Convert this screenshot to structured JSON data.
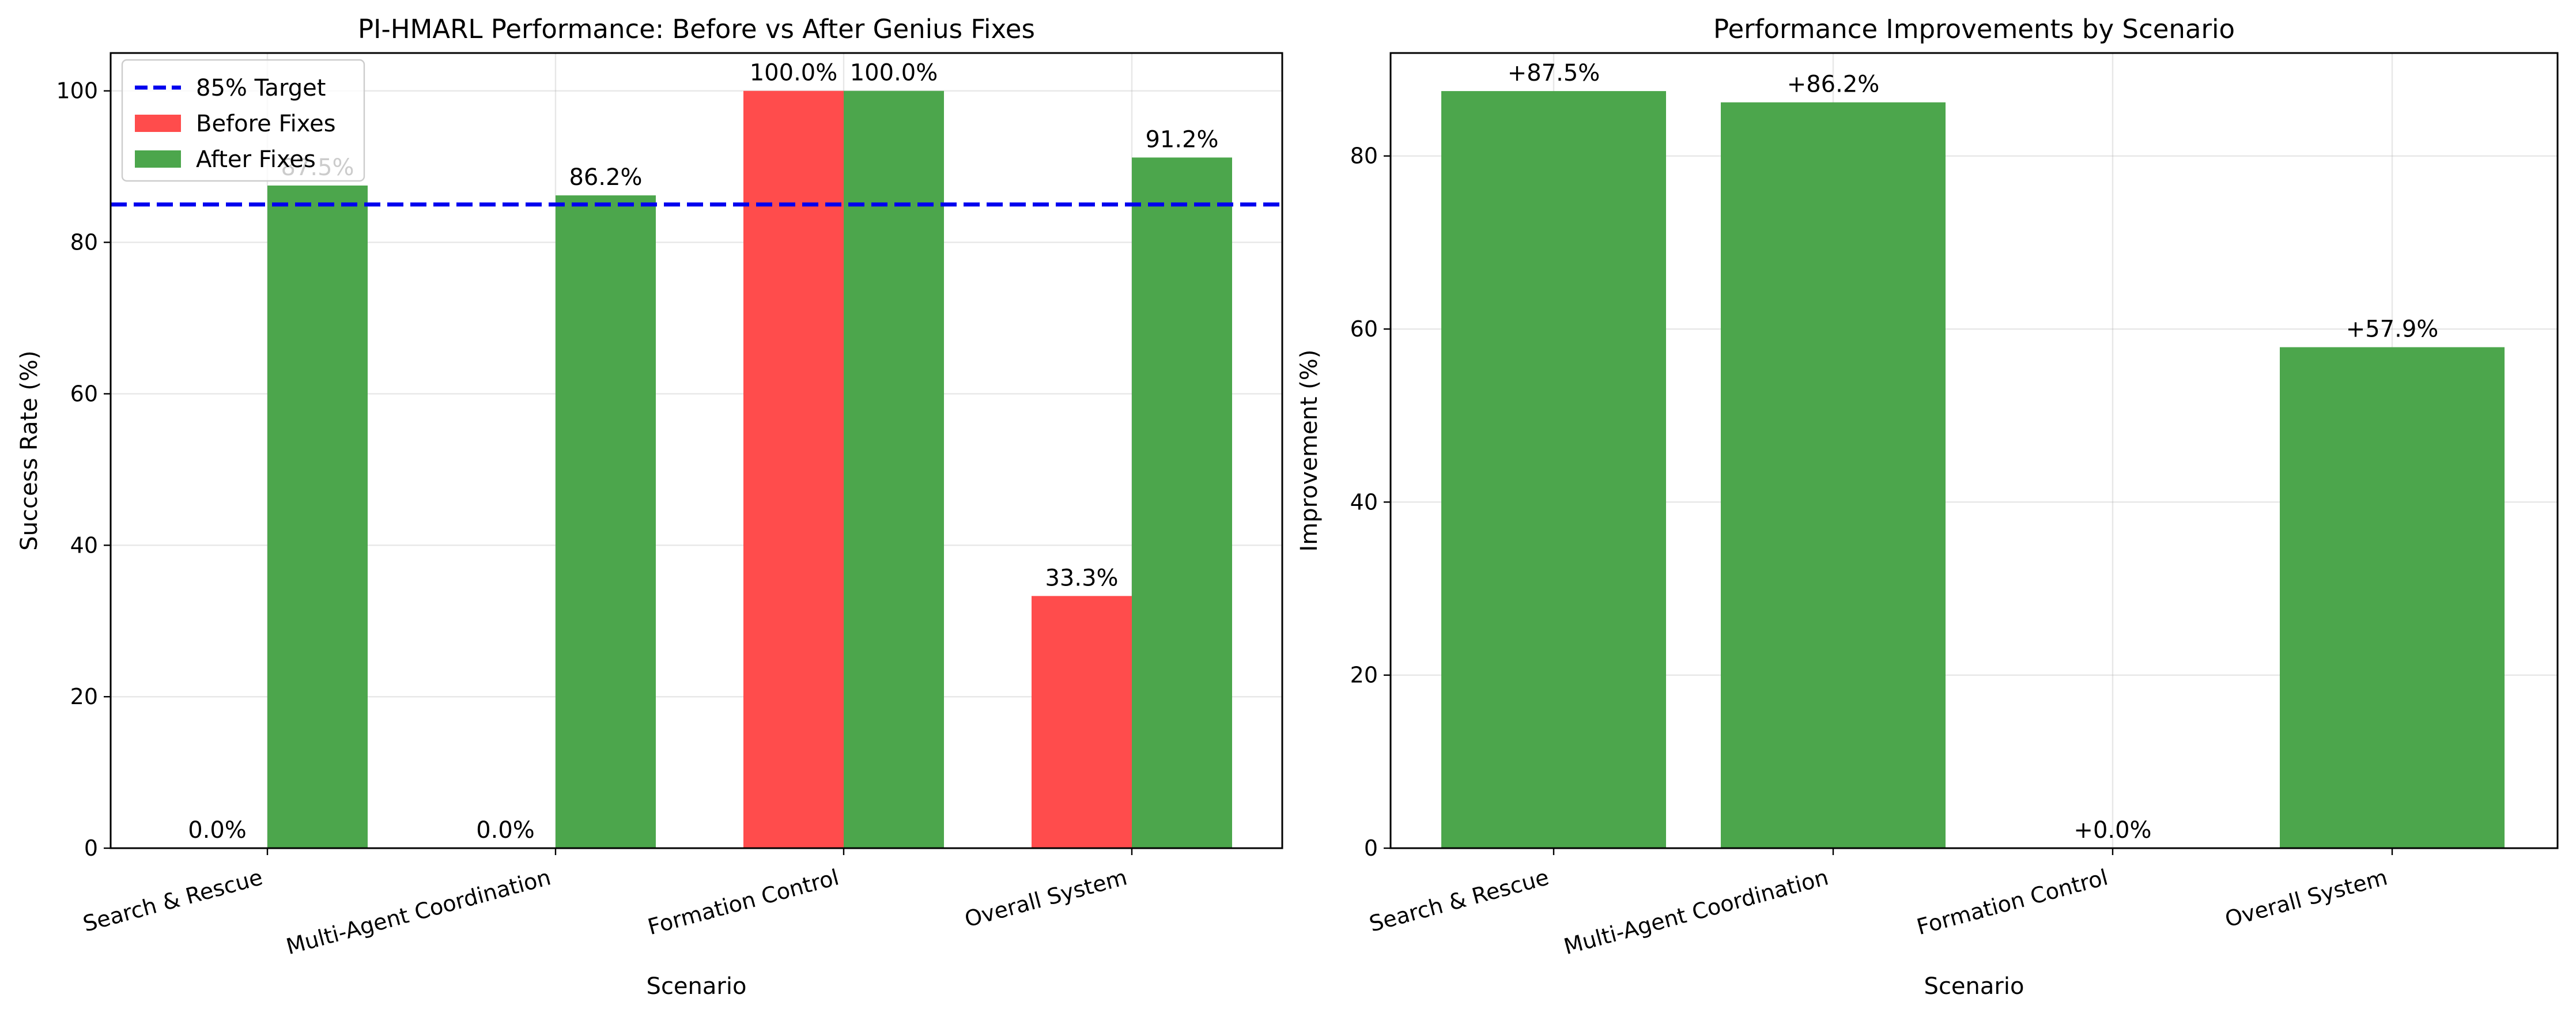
{
  "chart_data": [
    {
      "type": "bar",
      "title": "PI-HMARL Performance: Before vs After Genius Fixes",
      "xlabel": "Scenario",
      "ylabel": "Success Rate (%)",
      "categories": [
        "Search & Rescue",
        "Multi-Agent Coordination",
        "Formation Control",
        "Overall System"
      ],
      "series": [
        {
          "name": "Before Fixes",
          "color": "#ff4c4c",
          "values": [
            0.0,
            0.0,
            100.0,
            33.3
          ],
          "labels": [
            "0.0%",
            "0.0%",
            "100.0%",
            "33.3%"
          ]
        },
        {
          "name": "After Fixes",
          "color": "#4ca64c",
          "values": [
            87.5,
            86.2,
            100.0,
            91.2
          ],
          "labels": [
            "87.5%",
            "86.2%",
            "100.0%",
            "91.2%"
          ]
        }
      ],
      "reference_line": {
        "name": "85% Target",
        "value": 85,
        "color": "#0000ee",
        "style": "dashed"
      },
      "ylim": [
        0,
        105
      ],
      "yticks": [
        0,
        20,
        40,
        60,
        80,
        100
      ],
      "grid": true,
      "legend_position": "upper left"
    },
    {
      "type": "bar",
      "title": "Performance Improvements by Scenario",
      "xlabel": "Scenario",
      "ylabel": "Improvement (%)",
      "categories": [
        "Search & Rescue",
        "Multi-Agent Coordination",
        "Formation Control",
        "Overall System"
      ],
      "series": [
        {
          "color": "#4ca64c",
          "values": [
            87.5,
            86.2,
            0.0,
            57.9
          ],
          "labels": [
            "+87.5%",
            "+86.2%",
            "+0.0%",
            "+57.9%"
          ]
        }
      ],
      "ylim": [
        0,
        91.9
      ],
      "yticks": [
        0,
        20,
        40,
        60,
        80
      ],
      "grid": true
    }
  ]
}
